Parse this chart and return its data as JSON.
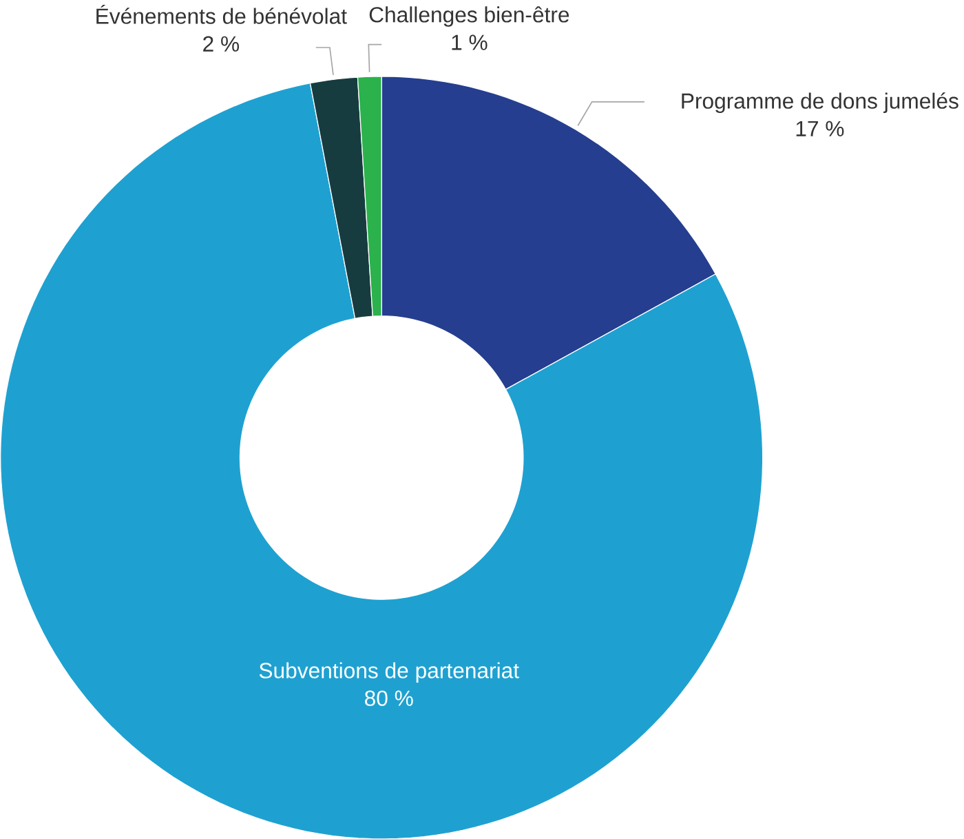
{
  "chart_data": {
    "type": "donut",
    "categories": [
      "Programme de dons jumelés",
      "Subventions de partenariat",
      "Événements de bénévolat",
      "Challenges bien-être"
    ],
    "values": [
      17,
      80,
      2,
      1
    ],
    "colors": [
      "#253e8f",
      "#1ea1d1",
      "#173c40",
      "#2bb24c"
    ],
    "value_labels": [
      "17 %",
      "80 %",
      "2 %",
      "1 %"
    ]
  }
}
